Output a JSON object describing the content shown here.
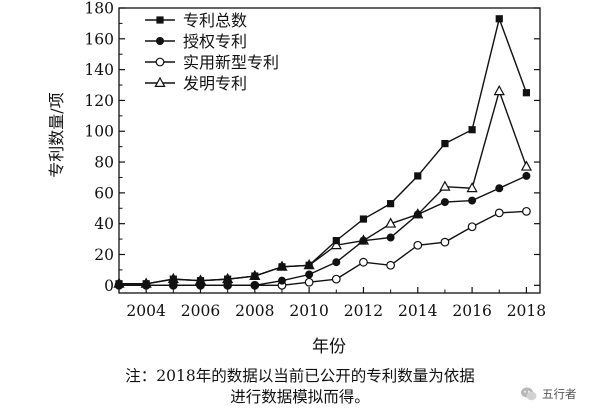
{
  "chart_data": {
    "type": "line",
    "xlabel": "年份",
    "ylabel": "专利数量/项",
    "x": [
      2003,
      2004,
      2005,
      2006,
      2007,
      2008,
      2009,
      2010,
      2011,
      2012,
      2013,
      2014,
      2015,
      2016,
      2017,
      2018
    ],
    "xlim": [
      2003,
      2018.5
    ],
    "ylim": [
      -5,
      180
    ],
    "xticks": [
      "2004",
      "2006",
      "2008",
      "2010",
      "2012",
      "2014",
      "2016",
      "2018"
    ],
    "yticks": [
      "0",
      "20",
      "40",
      "60",
      "80",
      "100",
      "120",
      "140",
      "160",
      "180"
    ],
    "grid": false,
    "legend_position": "top-left",
    "series": [
      {
        "name": "专利总数",
        "marker": "filled-square",
        "values": [
          1,
          1,
          4,
          3,
          4,
          6,
          12,
          13,
          29,
          43,
          53,
          71,
          92,
          101,
          173,
          125
        ]
      },
      {
        "name": "授权专利",
        "marker": "filled-circle",
        "values": [
          0,
          0,
          0,
          0,
          0,
          0,
          3,
          7,
          15,
          29,
          31,
          46,
          54,
          55,
          63,
          71
        ]
      },
      {
        "name": "实用新型专利",
        "marker": "open-circle",
        "values": [
          0,
          0,
          0,
          0,
          0,
          0,
          0,
          2,
          4,
          15,
          13,
          26,
          28,
          38,
          47,
          48
        ]
      },
      {
        "name": "发明专利",
        "marker": "open-triangle",
        "values": [
          1,
          1,
          4,
          3,
          4,
          6,
          12,
          13,
          26,
          29,
          40,
          46,
          64,
          63,
          126,
          77
        ]
      }
    ]
  },
  "note": {
    "line1": "注：2018年的数据以当前已公开的专利数量为依据",
    "line2": "进行数据模拟而得。"
  },
  "watermark": {
    "text": "五行者",
    "icon": "wechat-icon"
  }
}
